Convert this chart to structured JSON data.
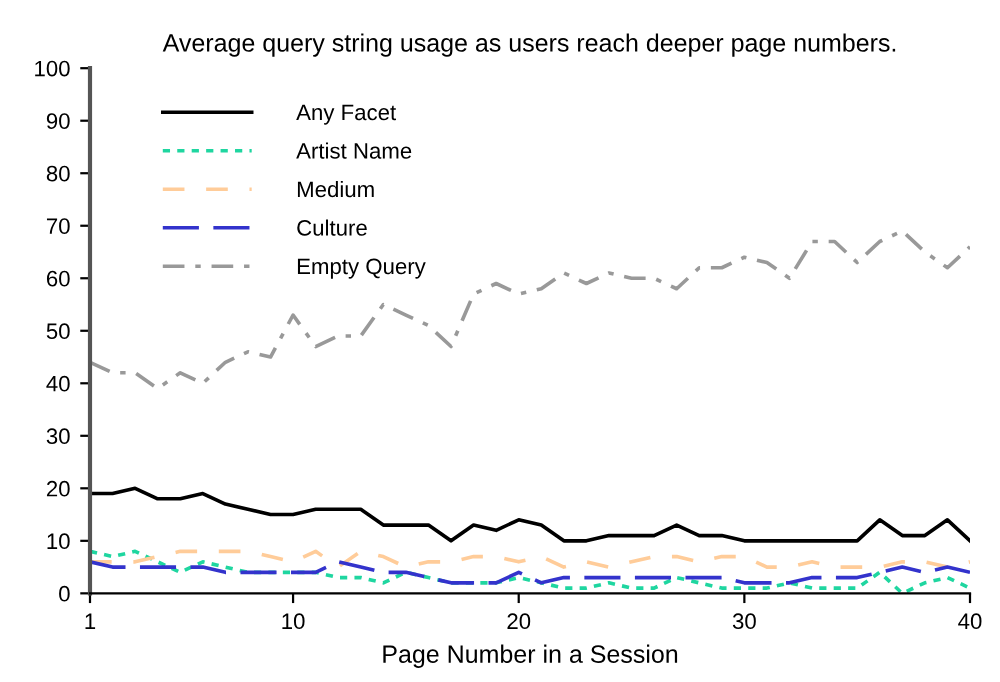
{
  "chart_data": {
    "type": "line",
    "title": "Average query string usage as users reach deeper page numbers.",
    "xlabel": "Page Number in a Session",
    "x": [
      1,
      2,
      3,
      4,
      5,
      6,
      7,
      8,
      9,
      10,
      11,
      12,
      13,
      14,
      15,
      16,
      17,
      18,
      19,
      20,
      21,
      22,
      23,
      24,
      25,
      26,
      27,
      28,
      29,
      30,
      31,
      32,
      33,
      34,
      35,
      36,
      37,
      38,
      39,
      40
    ],
    "series": [
      {
        "name": "Any Facet",
        "color": "#000000",
        "line_style": "solid",
        "values": [
          19,
          19,
          20,
          18,
          18,
          19,
          17,
          16,
          15,
          15,
          16,
          16,
          16,
          13,
          13,
          13,
          10,
          13,
          12,
          14,
          13,
          10,
          10,
          11,
          11,
          11,
          13,
          11,
          11,
          10,
          10,
          10,
          10,
          10,
          10,
          14,
          11,
          11,
          14,
          10
        ]
      },
      {
        "name": "Artist Name",
        "color": "#1fd6a0",
        "line_style": "dotted",
        "values": [
          8,
          7,
          8,
          6,
          4,
          6,
          5,
          4,
          4,
          4,
          4,
          3,
          3,
          2,
          4,
          3,
          2,
          2,
          2,
          3,
          2,
          1,
          1,
          2,
          1,
          1,
          3,
          2,
          1,
          1,
          1,
          2,
          1,
          1,
          1,
          4,
          0,
          2,
          3,
          1
        ]
      },
      {
        "name": "Medium",
        "color": "#ffcc99",
        "line_style": "dashed",
        "values": [
          6,
          6,
          6,
          7,
          8,
          8,
          8,
          8,
          7,
          6,
          8,
          5,
          8,
          7,
          5,
          6,
          6,
          7,
          7,
          6,
          7,
          5,
          6,
          5,
          6,
          7,
          7,
          6,
          7,
          7,
          5,
          5,
          6,
          5,
          5,
          5,
          6,
          6,
          5,
          6
        ]
      },
      {
        "name": "Culture",
        "color": "#3333cc",
        "line_style": "longdash",
        "values": [
          6,
          5,
          5,
          5,
          5,
          5,
          4,
          4,
          4,
          4,
          4,
          6,
          5,
          4,
          4,
          3,
          2,
          2,
          2,
          4,
          2,
          3,
          3,
          3,
          3,
          3,
          3,
          3,
          3,
          2,
          2,
          2,
          3,
          3,
          3,
          4,
          5,
          4,
          5,
          4
        ]
      },
      {
        "name": "Empty Query",
        "color": "#999999",
        "line_style": "dashdot",
        "values": [
          44,
          42,
          42,
          39,
          42,
          40,
          44,
          46,
          45,
          53,
          47,
          49,
          49,
          55,
          53,
          51,
          47,
          57,
          59,
          57,
          58,
          61,
          59,
          61,
          60,
          60,
          58,
          62,
          62,
          64,
          63,
          60,
          67,
          67,
          63,
          67,
          69,
          65,
          62,
          66
        ]
      }
    ],
    "xlim": [
      1,
      40
    ],
    "xticks": [
      1,
      10,
      20,
      30,
      40
    ],
    "ylim": [
      0,
      100
    ],
    "yticks": [
      0,
      10,
      20,
      30,
      40,
      50,
      60,
      70,
      80,
      90,
      100
    ],
    "grid": false,
    "legend": "top left",
    "marker": "none"
  }
}
